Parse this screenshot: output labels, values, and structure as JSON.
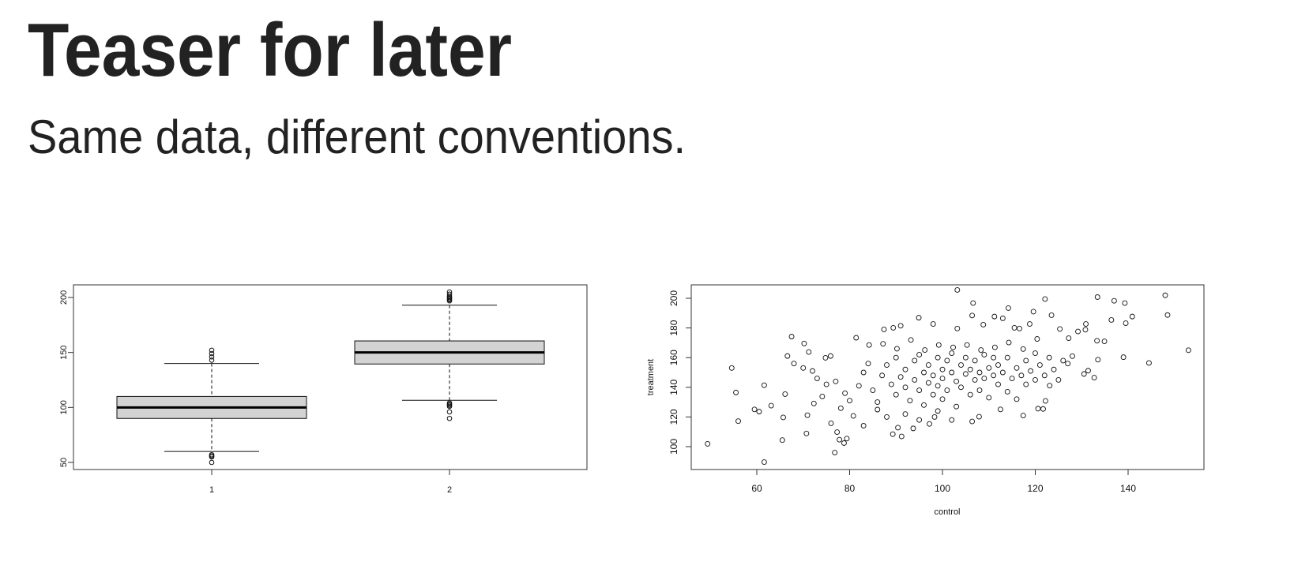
{
  "slide": {
    "title": "Teaser for later",
    "subtitle": "Same data, different conventions."
  },
  "chart_data": [
    {
      "type": "boxplot",
      "title": "",
      "xlabel": "",
      "ylabel": "",
      "categories": [
        "1",
        "2"
      ],
      "ylim": [
        43,
        210
      ],
      "yticks": [
        50,
        100,
        150,
        200
      ],
      "box_fill": "#d3d3d3",
      "boxes": [
        {
          "name": "1",
          "whisker_low": 60,
          "q1": 90,
          "median": 100,
          "q3": 110,
          "whisker_high": 140,
          "outliers": [
            143,
            146,
            149,
            152,
            55,
            56,
            57,
            50
          ]
        },
        {
          "name": "2",
          "whisker_low": 106.5,
          "q1": 139.5,
          "median": 150,
          "q3": 160.5,
          "whisker_high": 193,
          "outliers": [
            197,
            198,
            199,
            200,
            201,
            203,
            205,
            104,
            103,
            102,
            101,
            96,
            90
          ]
        }
      ]
    },
    {
      "type": "scatter",
      "title": "",
      "xlabel": "control",
      "ylabel": "treatment",
      "xlim": [
        45.9,
        156.3
      ],
      "ylim": [
        84.6,
        209
      ],
      "xticks": [
        60,
        80,
        100,
        120,
        140
      ],
      "yticks": [
        100,
        120,
        140,
        160,
        180,
        200
      ],
      "points": [
        [
          49.4,
          101.9
        ],
        [
          54.6,
          153
        ],
        [
          55.5,
          136.5
        ],
        [
          56,
          117.2
        ],
        [
          61.6,
          141.4
        ],
        [
          61.6,
          89.6
        ],
        [
          59.5,
          125.1
        ],
        [
          60.5,
          123.6
        ],
        [
          63.1,
          127.6
        ],
        [
          65.5,
          104.4
        ],
        [
          65.7,
          119.7
        ],
        [
          66.1,
          135.4
        ],
        [
          66.6,
          161.1
        ],
        [
          67.5,
          174.2
        ],
        [
          70.2,
          169.5
        ],
        [
          71.2,
          163.8
        ],
        [
          70.7,
          108.9
        ],
        [
          70.9,
          121.2
        ],
        [
          72.3,
          129.1
        ],
        [
          74.1,
          133.8
        ],
        [
          74.8,
          159.9
        ],
        [
          75.9,
          161.1
        ],
        [
          76.8,
          96
        ],
        [
          77.3,
          109.8
        ],
        [
          77.8,
          104.7
        ],
        [
          78.8,
          102.4
        ],
        [
          79.4,
          105.4
        ],
        [
          78.1,
          125.9
        ],
        [
          76,
          115.7
        ],
        [
          81.4,
          173.4
        ],
        [
          80.8,
          120.7
        ],
        [
          83,
          114.1
        ],
        [
          87.4,
          179
        ],
        [
          89.4,
          180.1
        ],
        [
          91,
          181.5
        ],
        [
          89.3,
          108.4
        ],
        [
          91.2,
          106.9
        ],
        [
          90.4,
          112.8
        ],
        [
          93.7,
          112.3
        ],
        [
          94.9,
          186.9
        ],
        [
          98,
          182.7
        ],
        [
          98.3,
          120
        ],
        [
          97.2,
          115.3
        ],
        [
          103.2,
          205.6
        ],
        [
          103.2,
          179.6
        ],
        [
          106.6,
          196.8
        ],
        [
          106.4,
          188.4
        ],
        [
          106.4,
          117
        ],
        [
          107.9,
          120.2
        ],
        [
          108.8,
          182.2
        ],
        [
          111.2,
          187.7
        ],
        [
          113,
          186.5
        ],
        [
          114.2,
          193.4
        ],
        [
          112.5,
          125.1
        ],
        [
          115.5,
          180.1
        ],
        [
          116.6,
          179.6
        ],
        [
          117.4,
          121
        ],
        [
          119.6,
          191
        ],
        [
          118.8,
          182.7
        ],
        [
          120.6,
          125.6
        ],
        [
          121.7,
          125.4
        ],
        [
          122.2,
          130.8
        ],
        [
          122.1,
          199.5
        ],
        [
          123.5,
          188.6
        ],
        [
          123.1,
          141.1
        ],
        [
          125.3,
          179.3
        ],
        [
          127.2,
          173.1
        ],
        [
          129.2,
          177.6
        ],
        [
          130.5,
          149
        ],
        [
          131.4,
          151.2
        ],
        [
          132.7,
          146.5
        ],
        [
          130.8,
          178.8
        ],
        [
          130.9,
          182.7
        ],
        [
          133.4,
          200.8
        ],
        [
          133.3,
          171.4
        ],
        [
          133.5,
          158.6
        ],
        [
          134.9,
          171
        ],
        [
          136.4,
          185.4
        ],
        [
          137,
          198.3
        ],
        [
          139.3,
          196.8
        ],
        [
          139.5,
          183.2
        ],
        [
          140.9,
          187.7
        ],
        [
          139,
          160.3
        ],
        [
          144.5,
          156.4
        ],
        [
          148,
          202
        ],
        [
          148.5,
          188.7
        ],
        [
          153,
          165
        ],
        [
          84.2,
          168.5
        ],
        [
          87.2,
          169.3
        ],
        [
          90.2,
          166
        ],
        [
          93.2,
          171.9
        ],
        [
          96.2,
          165.1
        ],
        [
          99.2,
          168.5
        ],
        [
          102.3,
          166.9
        ],
        [
          105.3,
          168.5
        ],
        [
          108.3,
          165.1
        ],
        [
          111.3,
          166.9
        ],
        [
          114.3,
          170.2
        ],
        [
          117.4,
          165.8
        ],
        [
          120.4,
          172.6
        ],
        [
          68,
          156
        ],
        [
          70,
          153
        ],
        [
          72,
          151
        ],
        [
          73,
          146
        ],
        [
          75,
          142
        ],
        [
          77,
          144
        ],
        [
          79,
          136
        ],
        [
          80,
          131
        ],
        [
          82,
          141
        ],
        [
          83,
          150
        ],
        [
          84,
          156
        ],
        [
          85,
          138
        ],
        [
          86,
          130
        ],
        [
          87,
          148
        ],
        [
          88,
          155
        ],
        [
          89,
          142
        ],
        [
          90,
          135
        ],
        [
          90,
          160
        ],
        [
          91,
          147
        ],
        [
          92,
          140
        ],
        [
          92,
          152
        ],
        [
          93,
          131
        ],
        [
          94,
          158
        ],
        [
          94,
          145
        ],
        [
          95,
          138
        ],
        [
          95,
          162
        ],
        [
          96,
          150
        ],
        [
          96,
          128
        ],
        [
          97,
          143
        ],
        [
          97,
          155
        ],
        [
          98,
          135
        ],
        [
          98,
          148
        ],
        [
          99,
          160
        ],
        [
          99,
          141
        ],
        [
          100,
          152
        ],
        [
          100,
          132
        ],
        [
          100,
          146
        ],
        [
          101,
          158
        ],
        [
          101,
          138
        ],
        [
          102,
          150
        ],
        [
          102,
          163
        ],
        [
          103,
          144
        ],
        [
          103,
          127
        ],
        [
          104,
          155
        ],
        [
          104,
          140
        ],
        [
          105,
          149
        ],
        [
          105,
          160
        ],
        [
          106,
          135
        ],
        [
          106,
          152
        ],
        [
          107,
          145
        ],
        [
          107,
          158
        ],
        [
          108,
          150
        ],
        [
          108,
          138
        ],
        [
          109,
          162
        ],
        [
          109,
          146
        ],
        [
          110,
          153
        ],
        [
          110,
          133
        ],
        [
          111,
          148
        ],
        [
          111,
          160
        ],
        [
          112,
          142
        ],
        [
          112,
          155
        ],
        [
          113,
          150
        ],
        [
          114,
          137
        ],
        [
          114,
          160
        ],
        [
          115,
          146
        ],
        [
          116,
          153
        ],
        [
          116,
          132
        ],
        [
          117,
          148
        ],
        [
          118,
          158
        ],
        [
          118,
          142
        ],
        [
          119,
          151
        ],
        [
          120,
          163
        ],
        [
          120,
          145
        ],
        [
          121,
          155
        ],
        [
          122,
          148
        ],
        [
          123,
          160
        ],
        [
          124,
          152
        ],
        [
          125,
          145
        ],
        [
          126,
          158
        ],
        [
          127,
          156
        ],
        [
          128,
          161
        ],
        [
          86,
          125
        ],
        [
          88,
          120
        ],
        [
          92,
          122
        ],
        [
          95,
          118
        ],
        [
          99,
          124
        ],
        [
          102,
          118
        ]
      ]
    }
  ]
}
